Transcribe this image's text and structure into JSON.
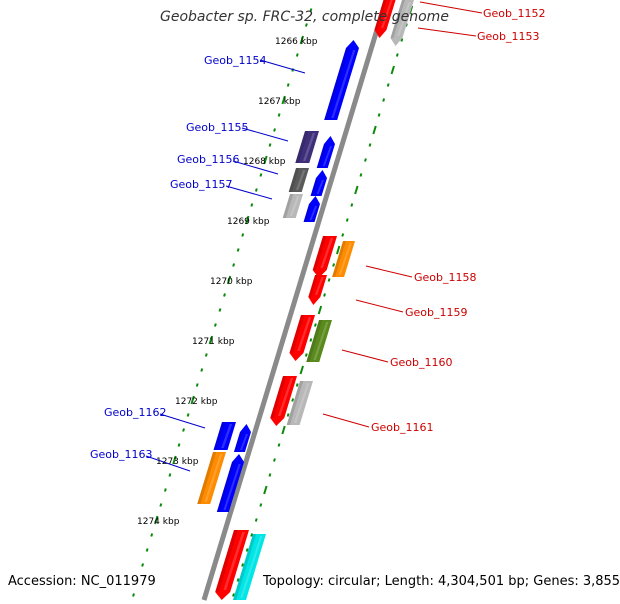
{
  "title": "Geobacter sp. FRC-32, complete genome",
  "footer": {
    "accession": "Accession: NC_011979",
    "topology": "Topology: circular; Length: 4,304,501 bp; Genes: 3,855"
  },
  "colors": {
    "backbone": "#8a8a8a",
    "forward_label": "#0000cc",
    "reverse_label": "#cc0000",
    "tick": "#0a8a0a"
  },
  "axis_labels": [
    "1266 kbp",
    "1267 kbp",
    "1268 kbp",
    "1269 kbp",
    "1270 kbp",
    "1271 kbp",
    "1272 kbp",
    "1273 kbp",
    "1274 kbp"
  ],
  "genes": [
    {
      "id": "Geob_1152",
      "strand": "reverse",
      "color": "#ff0000"
    },
    {
      "id": "Geob_1153",
      "strand": "reverse",
      "color": "#b8b8b8"
    },
    {
      "id": "Geob_1154",
      "strand": "forward",
      "color": "#0000ff"
    },
    {
      "id": "Geob_1155",
      "strand": "forward",
      "color": "#3f2f7a"
    },
    {
      "id": "Geob_1156",
      "strand": "forward",
      "color": "#5a5a5a"
    },
    {
      "id": "Geob_1157",
      "strand": "forward",
      "color": "#b8b8b8"
    },
    {
      "id": "Geob_1158",
      "strand": "reverse",
      "color": "#ff8c00"
    },
    {
      "id": "Geob_1159",
      "strand": "reverse",
      "color": "#ff0000"
    },
    {
      "id": "Geob_1160",
      "strand": "reverse",
      "color": "#5a8a1e"
    },
    {
      "id": "Geob_1161",
      "strand": "reverse",
      "color": "#b8b8b8"
    },
    {
      "id": "Geob_1162",
      "strand": "forward",
      "color": "#0000ff"
    },
    {
      "id": "Geob_1163",
      "strand": "forward",
      "color": "#ff8c00"
    }
  ],
  "extra_features": [
    {
      "name": "blue-feature",
      "color": "#0000ff"
    },
    {
      "name": "red-feature",
      "color": "#ff0000"
    },
    {
      "name": "cyan-feature",
      "color": "#00e5e5"
    }
  ]
}
